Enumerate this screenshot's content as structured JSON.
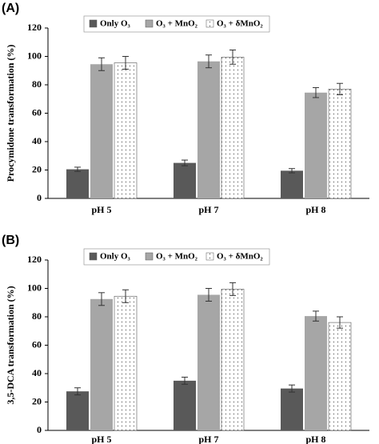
{
  "chart_data": [
    {
      "type": "bar",
      "label": "(A)",
      "y_label": "Procymidone transformation (%)",
      "categories": [
        "pH 5",
        "pH 7",
        "pH 8"
      ],
      "series": [
        {
          "name": "Only O₃",
          "color": "#595959",
          "values": [
            20.5,
            25,
            19.5
          ],
          "errors": [
            1.5,
            2,
            1.5
          ]
        },
        {
          "name": "O₃ + MnO₂",
          "color": "#a6a6a6",
          "values": [
            94.5,
            96.5,
            74.5
          ],
          "errors": [
            4.5,
            4.5,
            3.5
          ]
        },
        {
          "name": "O₃ + δMnO₂",
          "color": "#ffffff",
          "pattern": "dots",
          "values": [
            95.5,
            99.5,
            77
          ],
          "errors": [
            4.5,
            5,
            4
          ]
        }
      ],
      "ylim": [
        0,
        120
      ],
      "yticks": [
        0,
        20,
        40,
        60,
        80,
        100,
        120
      ]
    },
    {
      "type": "bar",
      "label": "(B)",
      "y_label": "3,5-DCA transformation (%)",
      "categories": [
        "pH 5",
        "pH 7",
        "pH 8"
      ],
      "series": [
        {
          "name": "Only O₃",
          "color": "#595959",
          "values": [
            27.5,
            35,
            29.5
          ],
          "errors": [
            2.5,
            2.5,
            2.5
          ]
        },
        {
          "name": "O₃ + MnO₂",
          "color": "#a6a6a6",
          "values": [
            92.5,
            95.5,
            80.5
          ],
          "errors": [
            4.5,
            4.5,
            3.5
          ]
        },
        {
          "name": "O₃ + δMnO₂",
          "color": "#ffffff",
          "pattern": "dots",
          "values": [
            94.5,
            99.5,
            76
          ],
          "errors": [
            4.5,
            4.5,
            4
          ]
        }
      ],
      "ylim": [
        0,
        120
      ],
      "yticks": [
        0,
        20,
        40,
        60,
        80,
        100,
        120
      ]
    }
  ]
}
